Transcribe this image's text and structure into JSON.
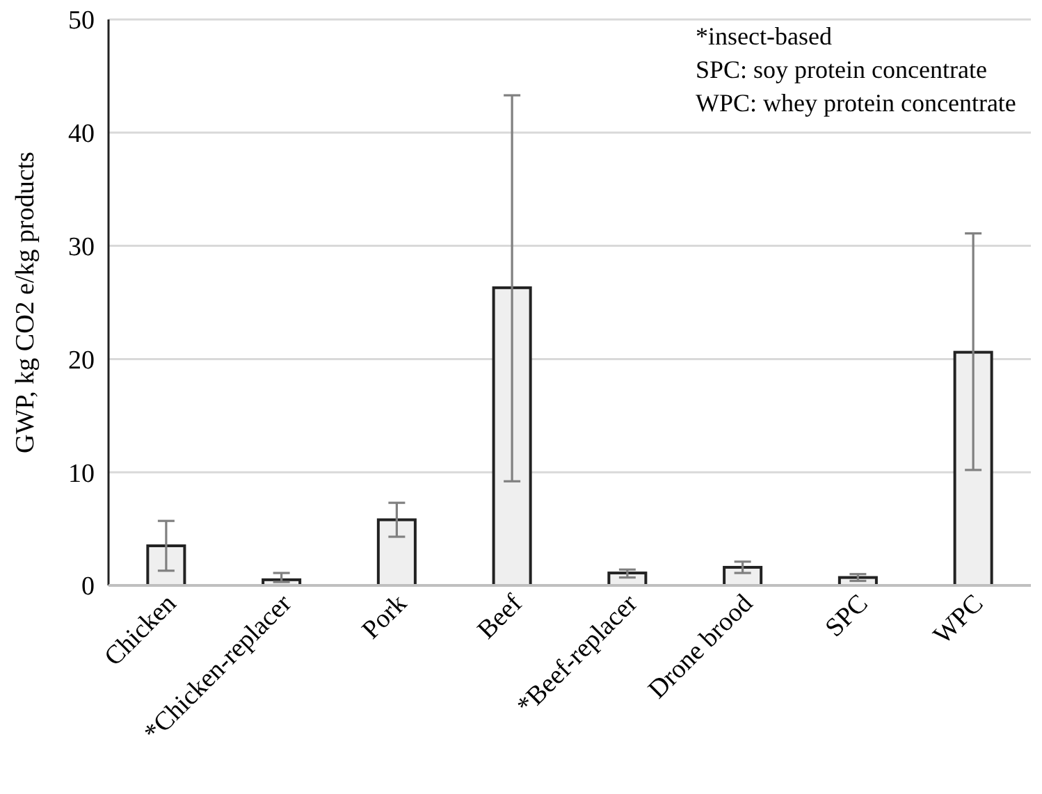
{
  "chart_data": {
    "type": "bar",
    "ylabel": "GWP, kg CO2 e/kg products",
    "categories": [
      "Chicken",
      "*Chicken-replacer",
      "Pork",
      "Beef",
      "*Beef-replacer",
      "Drone brood",
      "SPC",
      "WPC"
    ],
    "values": [
      3.5,
      0.5,
      5.8,
      26.3,
      1.1,
      1.6,
      0.7,
      20.6
    ],
    "errors": [
      [
        1.3,
        5.7
      ],
      [
        0.3,
        1.1
      ],
      [
        4.3,
        7.3
      ],
      [
        9.2,
        43.3
      ],
      [
        0.7,
        1.4
      ],
      [
        1.1,
        2.1
      ],
      [
        0.4,
        1.0
      ],
      [
        10.2,
        31.1
      ]
    ],
    "color": "#efefef",
    "ylim": [
      0,
      50
    ],
    "yticks": [
      0,
      10,
      20,
      30,
      40,
      50
    ],
    "grid": "y",
    "annotations": [
      "*insect-based",
      "SPC: soy protein concentrate",
      "WPC: whey protein concentrate"
    ]
  }
}
